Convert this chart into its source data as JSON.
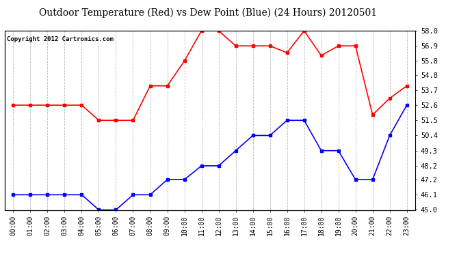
{
  "title": "Outdoor Temperature (Red) vs Dew Point (Blue) (24 Hours) 20120501",
  "copyright_text": "Copyright 2012 Cartronics.com",
  "x_labels": [
    "00:00",
    "01:00",
    "02:00",
    "03:00",
    "04:00",
    "05:00",
    "06:00",
    "07:00",
    "08:00",
    "09:00",
    "10:00",
    "11:00",
    "12:00",
    "13:00",
    "14:00",
    "15:00",
    "16:00",
    "17:00",
    "18:00",
    "19:00",
    "20:00",
    "21:00",
    "22:00",
    "23:00"
  ],
  "red_data": [
    52.6,
    52.6,
    52.6,
    52.6,
    52.6,
    51.5,
    51.5,
    51.5,
    54.0,
    54.0,
    55.8,
    58.0,
    58.0,
    56.9,
    56.9,
    56.9,
    56.4,
    58.0,
    56.2,
    56.9,
    56.9,
    51.9,
    53.1,
    54.0
  ],
  "blue_data": [
    46.1,
    46.1,
    46.1,
    46.1,
    46.1,
    45.0,
    45.0,
    46.1,
    46.1,
    47.2,
    47.2,
    48.2,
    48.2,
    49.3,
    50.4,
    50.4,
    51.5,
    51.5,
    49.3,
    49.3,
    47.2,
    47.2,
    50.4,
    52.6
  ],
  "ylim": [
    45.0,
    58.0
  ],
  "yticks": [
    45.0,
    46.1,
    47.2,
    48.2,
    49.3,
    50.4,
    51.5,
    52.6,
    53.7,
    54.8,
    55.8,
    56.9,
    58.0
  ],
  "red_color": "#ff0000",
  "blue_color": "#0000ff",
  "marker": "s",
  "markersize": 3,
  "linewidth": 1.2,
  "grid_color": "#bbbbbb",
  "grid_linestyle": "--",
  "bg_color": "#ffffff",
  "title_fontsize": 10,
  "copyright_fontsize": 6.5,
  "tick_fontsize": 7,
  "ylabel_right_fontsize": 7.5
}
